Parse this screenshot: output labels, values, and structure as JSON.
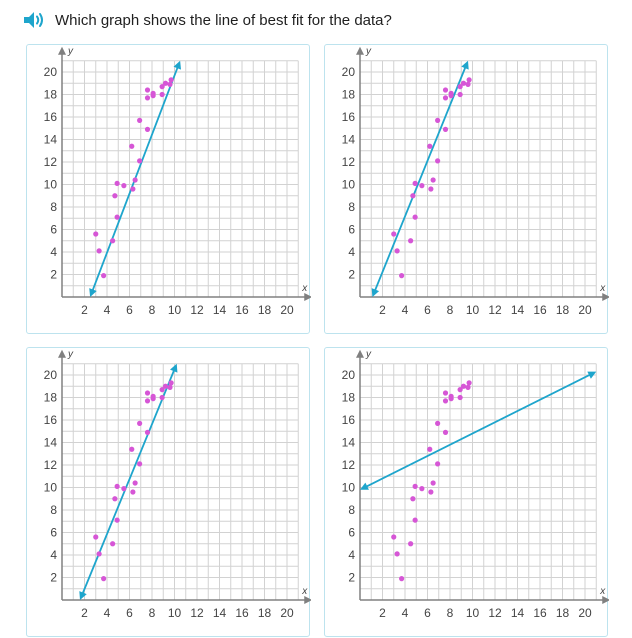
{
  "question": {
    "text": "Which graph shows the line of best fit for the data?",
    "audio_icon": "speaker-icon"
  },
  "colors": {
    "grid": "#d2d2d2",
    "axis": "#808080",
    "points": "#d656d6",
    "line": "#1ea5cc",
    "card_border": "#bde3ee"
  },
  "graph": {
    "x_label": "x",
    "y_label": "y",
    "xlim": [
      0,
      21
    ],
    "ylim": [
      0,
      21
    ],
    "x_ticks": [
      "2",
      "4",
      "6",
      "8",
      "10",
      "12",
      "14",
      "16",
      "18",
      "20"
    ],
    "y_ticks": [
      "2",
      "4",
      "6",
      "8",
      "10",
      "12",
      "14",
      "16",
      "18",
      "20"
    ]
  },
  "chart_data": [
    {
      "type": "scatter",
      "title": "",
      "xlabel": "x",
      "ylabel": "y",
      "xlim": [
        0,
        21
      ],
      "ylim": [
        0,
        21
      ],
      "points": [
        [
          3,
          5.6
        ],
        [
          3.3,
          4.1
        ],
        [
          3.7,
          1.9
        ],
        [
          4.5,
          5.0
        ],
        [
          4.7,
          9.0
        ],
        [
          4.9,
          7.1
        ],
        [
          4.9,
          10.1
        ],
        [
          5.5,
          9.9
        ],
        [
          6.2,
          13.4
        ],
        [
          6.3,
          9.6
        ],
        [
          6.5,
          10.4
        ],
        [
          6.9,
          12.1
        ],
        [
          6.9,
          15.7
        ],
        [
          7.6,
          14.9
        ],
        [
          7.6,
          17.7
        ],
        [
          7.6,
          18.4
        ],
        [
          8.1,
          17.9
        ],
        [
          8.1,
          18.1
        ],
        [
          8.9,
          18.7
        ],
        [
          8.9,
          18.0
        ],
        [
          9.2,
          19.0
        ],
        [
          9.6,
          18.9
        ],
        [
          9.7,
          19.3
        ]
      ],
      "line": {
        "start": [
          2.5,
          0
        ],
        "end": [
          10.5,
          21
        ],
        "arrows": "both"
      }
    },
    {
      "type": "scatter",
      "title": "",
      "xlabel": "x",
      "ylabel": "y",
      "xlim": [
        0,
        21
      ],
      "ylim": [
        0,
        21
      ],
      "points": [
        [
          3,
          5.6
        ],
        [
          3.3,
          4.1
        ],
        [
          3.7,
          1.9
        ],
        [
          4.5,
          5.0
        ],
        [
          4.7,
          9.0
        ],
        [
          4.9,
          7.1
        ],
        [
          4.9,
          10.1
        ],
        [
          5.5,
          9.9
        ],
        [
          6.2,
          13.4
        ],
        [
          6.3,
          9.6
        ],
        [
          6.5,
          10.4
        ],
        [
          6.9,
          12.1
        ],
        [
          6.9,
          15.7
        ],
        [
          7.6,
          14.9
        ],
        [
          7.6,
          17.7
        ],
        [
          7.6,
          18.4
        ],
        [
          8.1,
          17.9
        ],
        [
          8.1,
          18.1
        ],
        [
          8.9,
          18.7
        ],
        [
          8.9,
          18.0
        ],
        [
          9.2,
          19.0
        ],
        [
          9.6,
          18.9
        ],
        [
          9.7,
          19.3
        ]
      ],
      "line": {
        "start": [
          1.1,
          0
        ],
        "end": [
          9.6,
          21
        ],
        "arrows": "both"
      }
    },
    {
      "type": "scatter",
      "title": "",
      "xlabel": "x",
      "ylabel": "y",
      "xlim": [
        0,
        21
      ],
      "ylim": [
        0,
        21
      ],
      "points": [
        [
          3,
          5.6
        ],
        [
          3.3,
          4.1
        ],
        [
          3.7,
          1.9
        ],
        [
          4.5,
          5.0
        ],
        [
          4.7,
          9.0
        ],
        [
          4.9,
          7.1
        ],
        [
          4.9,
          10.1
        ],
        [
          5.5,
          9.9
        ],
        [
          6.2,
          13.4
        ],
        [
          6.3,
          9.6
        ],
        [
          6.5,
          10.4
        ],
        [
          6.9,
          12.1
        ],
        [
          6.9,
          15.7
        ],
        [
          7.6,
          14.9
        ],
        [
          7.6,
          17.7
        ],
        [
          7.6,
          18.4
        ],
        [
          8.1,
          17.9
        ],
        [
          8.1,
          18.1
        ],
        [
          8.9,
          18.7
        ],
        [
          8.9,
          18.0
        ],
        [
          9.2,
          19.0
        ],
        [
          9.6,
          18.9
        ],
        [
          9.7,
          19.3
        ]
      ],
      "line": {
        "start": [
          1.6,
          0
        ],
        "end": [
          10.2,
          21
        ],
        "arrows": "both"
      }
    },
    {
      "type": "scatter",
      "title": "",
      "xlabel": "x",
      "ylabel": "y",
      "xlim": [
        0,
        21
      ],
      "ylim": [
        0,
        21
      ],
      "points": [
        [
          3,
          5.6
        ],
        [
          3.3,
          4.1
        ],
        [
          3.7,
          1.9
        ],
        [
          4.5,
          5.0
        ],
        [
          4.7,
          9.0
        ],
        [
          4.9,
          7.1
        ],
        [
          4.9,
          10.1
        ],
        [
          5.5,
          9.9
        ],
        [
          6.2,
          13.4
        ],
        [
          6.3,
          9.6
        ],
        [
          6.5,
          10.4
        ],
        [
          6.9,
          12.1
        ],
        [
          6.9,
          15.7
        ],
        [
          7.6,
          14.9
        ],
        [
          7.6,
          17.7
        ],
        [
          7.6,
          18.4
        ],
        [
          8.1,
          17.9
        ],
        [
          8.1,
          18.1
        ],
        [
          8.9,
          18.7
        ],
        [
          8.9,
          18.0
        ],
        [
          9.2,
          19.0
        ],
        [
          9.6,
          18.9
        ],
        [
          9.7,
          19.3
        ]
      ],
      "line": {
        "start": [
          0,
          9.8
        ],
        "end": [
          21,
          20.3
        ],
        "arrows": "both"
      }
    }
  ]
}
